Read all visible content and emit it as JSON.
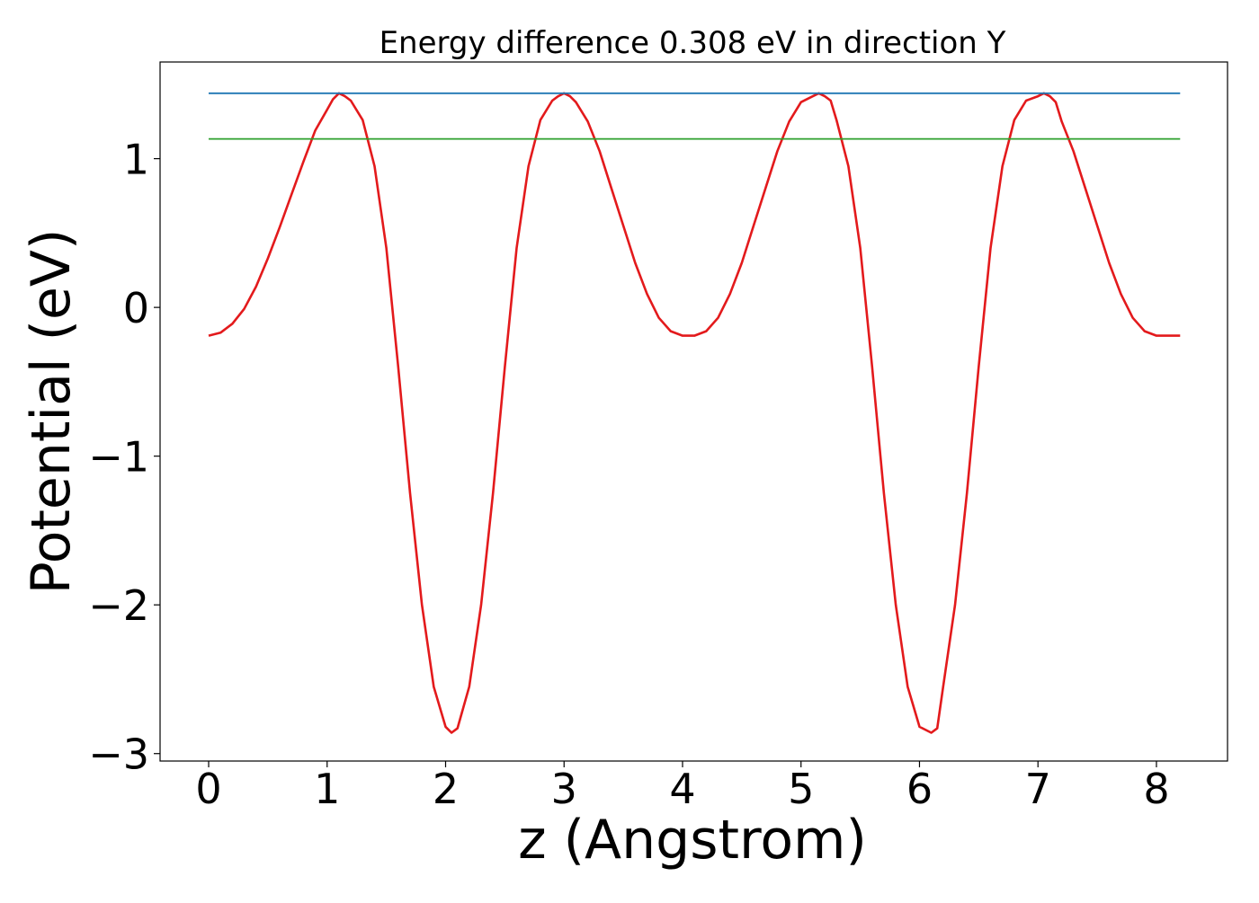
{
  "chart_data": {
    "type": "line",
    "title": "Energy difference 0.308 eV in direction Y",
    "xlabel": "z (Angstrom)",
    "ylabel": "Potential (eV)",
    "xlim": [
      -0.41,
      8.6
    ],
    "ylim": [
      -3.05,
      1.65
    ],
    "xticks": [
      0,
      1,
      2,
      3,
      4,
      5,
      6,
      7,
      8
    ],
    "yticks": [
      -3,
      -2,
      -1,
      0,
      1
    ],
    "xtick_labels": [
      "0",
      "1",
      "2",
      "3",
      "4",
      "5",
      "6",
      "7",
      "8"
    ],
    "ytick_labels": [
      "−3",
      "−2",
      "−1",
      "0",
      "1"
    ],
    "grid": false,
    "legend": "none",
    "series": [
      {
        "color": "#e31a1c",
        "x": [
          0.0,
          0.1,
          0.2,
          0.3,
          0.4,
          0.5,
          0.6,
          0.7,
          0.8,
          0.9,
          1.0,
          1.05,
          1.1,
          1.15,
          1.2,
          1.3,
          1.4,
          1.5,
          1.6,
          1.7,
          1.8,
          1.9,
          2.0,
          2.05,
          2.1,
          2.2,
          2.3,
          2.4,
          2.5,
          2.6,
          2.7,
          2.8,
          2.9,
          2.95,
          3.0,
          3.05,
          3.1,
          3.2,
          3.3,
          3.4,
          3.5,
          3.6,
          3.7,
          3.8,
          3.9,
          4.0,
          4.1,
          4.2,
          4.3,
          4.4,
          4.5,
          4.6,
          4.7,
          4.8,
          4.9,
          5.0,
          5.1,
          5.15,
          5.2,
          5.25,
          5.3,
          5.4,
          5.5,
          5.6,
          5.7,
          5.8,
          5.9,
          6.0,
          6.1,
          6.15,
          6.2,
          6.3,
          6.4,
          6.5,
          6.6,
          6.7,
          6.8,
          6.9,
          7.0,
          7.05,
          7.1,
          7.15,
          7.2,
          7.3,
          7.4,
          7.5,
          7.6,
          7.7,
          7.8,
          7.9,
          8.0,
          8.1,
          8.2
        ],
        "y": [
          -0.19,
          -0.17,
          -0.11,
          -0.01,
          0.14,
          0.33,
          0.54,
          0.76,
          0.98,
          1.19,
          1.33,
          1.4,
          1.44,
          1.42,
          1.39,
          1.26,
          0.95,
          0.4,
          -0.4,
          -1.25,
          -2.0,
          -2.55,
          -2.82,
          -2.86,
          -2.83,
          -2.55,
          -2.0,
          -1.25,
          -0.4,
          0.4,
          0.95,
          1.26,
          1.39,
          1.42,
          1.44,
          1.42,
          1.38,
          1.25,
          1.05,
          0.8,
          0.55,
          0.3,
          0.09,
          -0.07,
          -0.16,
          -0.19,
          -0.19,
          -0.16,
          -0.07,
          0.09,
          0.3,
          0.55,
          0.8,
          1.05,
          1.25,
          1.38,
          1.42,
          1.44,
          1.42,
          1.39,
          1.26,
          0.95,
          0.4,
          -0.4,
          -1.25,
          -2.0,
          -2.55,
          -2.82,
          -2.86,
          -2.83,
          -2.55,
          -2.0,
          -1.25,
          -0.4,
          0.4,
          0.95,
          1.26,
          1.39,
          1.42,
          1.44,
          1.42,
          1.38,
          1.25,
          1.05,
          0.8,
          0.55,
          0.3,
          0.09,
          -0.07,
          -0.16,
          -0.19,
          -0.19,
          -0.19
        ]
      },
      {
        "color": "#1f77b4",
        "x": [
          0.0,
          8.2
        ],
        "y": [
          1.44,
          1.44
        ]
      },
      {
        "color": "#2ca02c",
        "x": [
          0.0,
          8.2
        ],
        "y": [
          1.133,
          1.133
        ]
      }
    ]
  }
}
